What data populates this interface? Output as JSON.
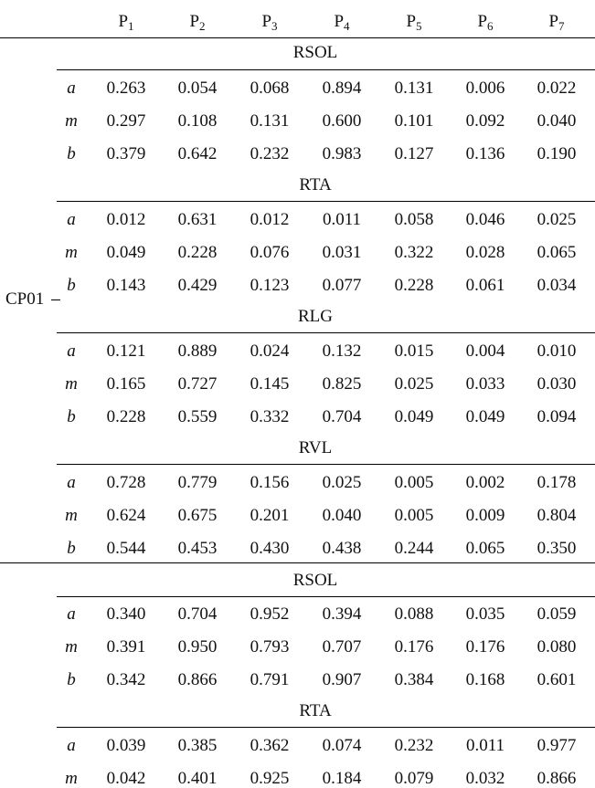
{
  "columns": [
    {
      "base": "P",
      "sub": "1"
    },
    {
      "base": "P",
      "sub": "2"
    },
    {
      "base": "P",
      "sub": "3"
    },
    {
      "base": "P",
      "sub": "4"
    },
    {
      "base": "P",
      "sub": "5"
    },
    {
      "base": "P",
      "sub": "6"
    },
    {
      "base": "P",
      "sub": "7"
    }
  ],
  "group_label": "CP01",
  "sections": [
    {
      "name": "RSOL",
      "rows": [
        {
          "label": "a",
          "values": [
            "0.263",
            "0.054",
            "0.068",
            "0.894",
            "0.131",
            "0.006",
            "0.022"
          ]
        },
        {
          "label": "m",
          "values": [
            "0.297",
            "0.108",
            "0.131",
            "0.600",
            "0.101",
            "0.092",
            "0.040"
          ]
        },
        {
          "label": "b",
          "values": [
            "0.379",
            "0.642",
            "0.232",
            "0.983",
            "0.127",
            "0.136",
            "0.190"
          ]
        }
      ]
    },
    {
      "name": "RTA",
      "rows": [
        {
          "label": "a",
          "values": [
            "0.012",
            "0.631",
            "0.012",
            "0.011",
            "0.058",
            "0.046",
            "0.025"
          ]
        },
        {
          "label": "m",
          "values": [
            "0.049",
            "0.228",
            "0.076",
            "0.031",
            "0.322",
            "0.028",
            "0.065"
          ]
        },
        {
          "label": "b",
          "values": [
            "0.143",
            "0.429",
            "0.123",
            "0.077",
            "0.228",
            "0.061",
            "0.034"
          ]
        }
      ]
    },
    {
      "name": "RLG",
      "rows": [
        {
          "label": "a",
          "values": [
            "0.121",
            "0.889",
            "0.024",
            "0.132",
            "0.015",
            "0.004",
            "0.010"
          ]
        },
        {
          "label": "m",
          "values": [
            "0.165",
            "0.727",
            "0.145",
            "0.825",
            "0.025",
            "0.033",
            "0.030"
          ]
        },
        {
          "label": "b",
          "values": [
            "0.228",
            "0.559",
            "0.332",
            "0.704",
            "0.049",
            "0.049",
            "0.094"
          ]
        }
      ]
    },
    {
      "name": "RVL",
      "rows": [
        {
          "label": "a",
          "values": [
            "0.728",
            "0.779",
            "0.156",
            "0.025",
            "0.005",
            "0.002",
            "0.178"
          ]
        },
        {
          "label": "m",
          "values": [
            "0.624",
            "0.675",
            "0.201",
            "0.040",
            "0.005",
            "0.009",
            "0.804"
          ]
        },
        {
          "label": "b",
          "values": [
            "0.544",
            "0.453",
            "0.430",
            "0.438",
            "0.244",
            "0.065",
            "0.350"
          ]
        }
      ]
    },
    {
      "name": "RSOL",
      "rows": [
        {
          "label": "a",
          "values": [
            "0.340",
            "0.704",
            "0.952",
            "0.394",
            "0.088",
            "0.035",
            "0.059"
          ]
        },
        {
          "label": "m",
          "values": [
            "0.391",
            "0.950",
            "0.793",
            "0.707",
            "0.176",
            "0.176",
            "0.080"
          ]
        },
        {
          "label": "b",
          "values": [
            "0.342",
            "0.866",
            "0.791",
            "0.907",
            "0.384",
            "0.168",
            "0.601"
          ]
        }
      ]
    },
    {
      "name": "RTA",
      "rows": [
        {
          "label": "a",
          "values": [
            "0.039",
            "0.385",
            "0.362",
            "0.074",
            "0.232",
            "0.011",
            "0.977"
          ]
        },
        {
          "label": "m",
          "values": [
            "0.042",
            "0.401",
            "0.925",
            "0.184",
            "0.079",
            "0.032",
            "0.866"
          ]
        }
      ]
    }
  ]
}
